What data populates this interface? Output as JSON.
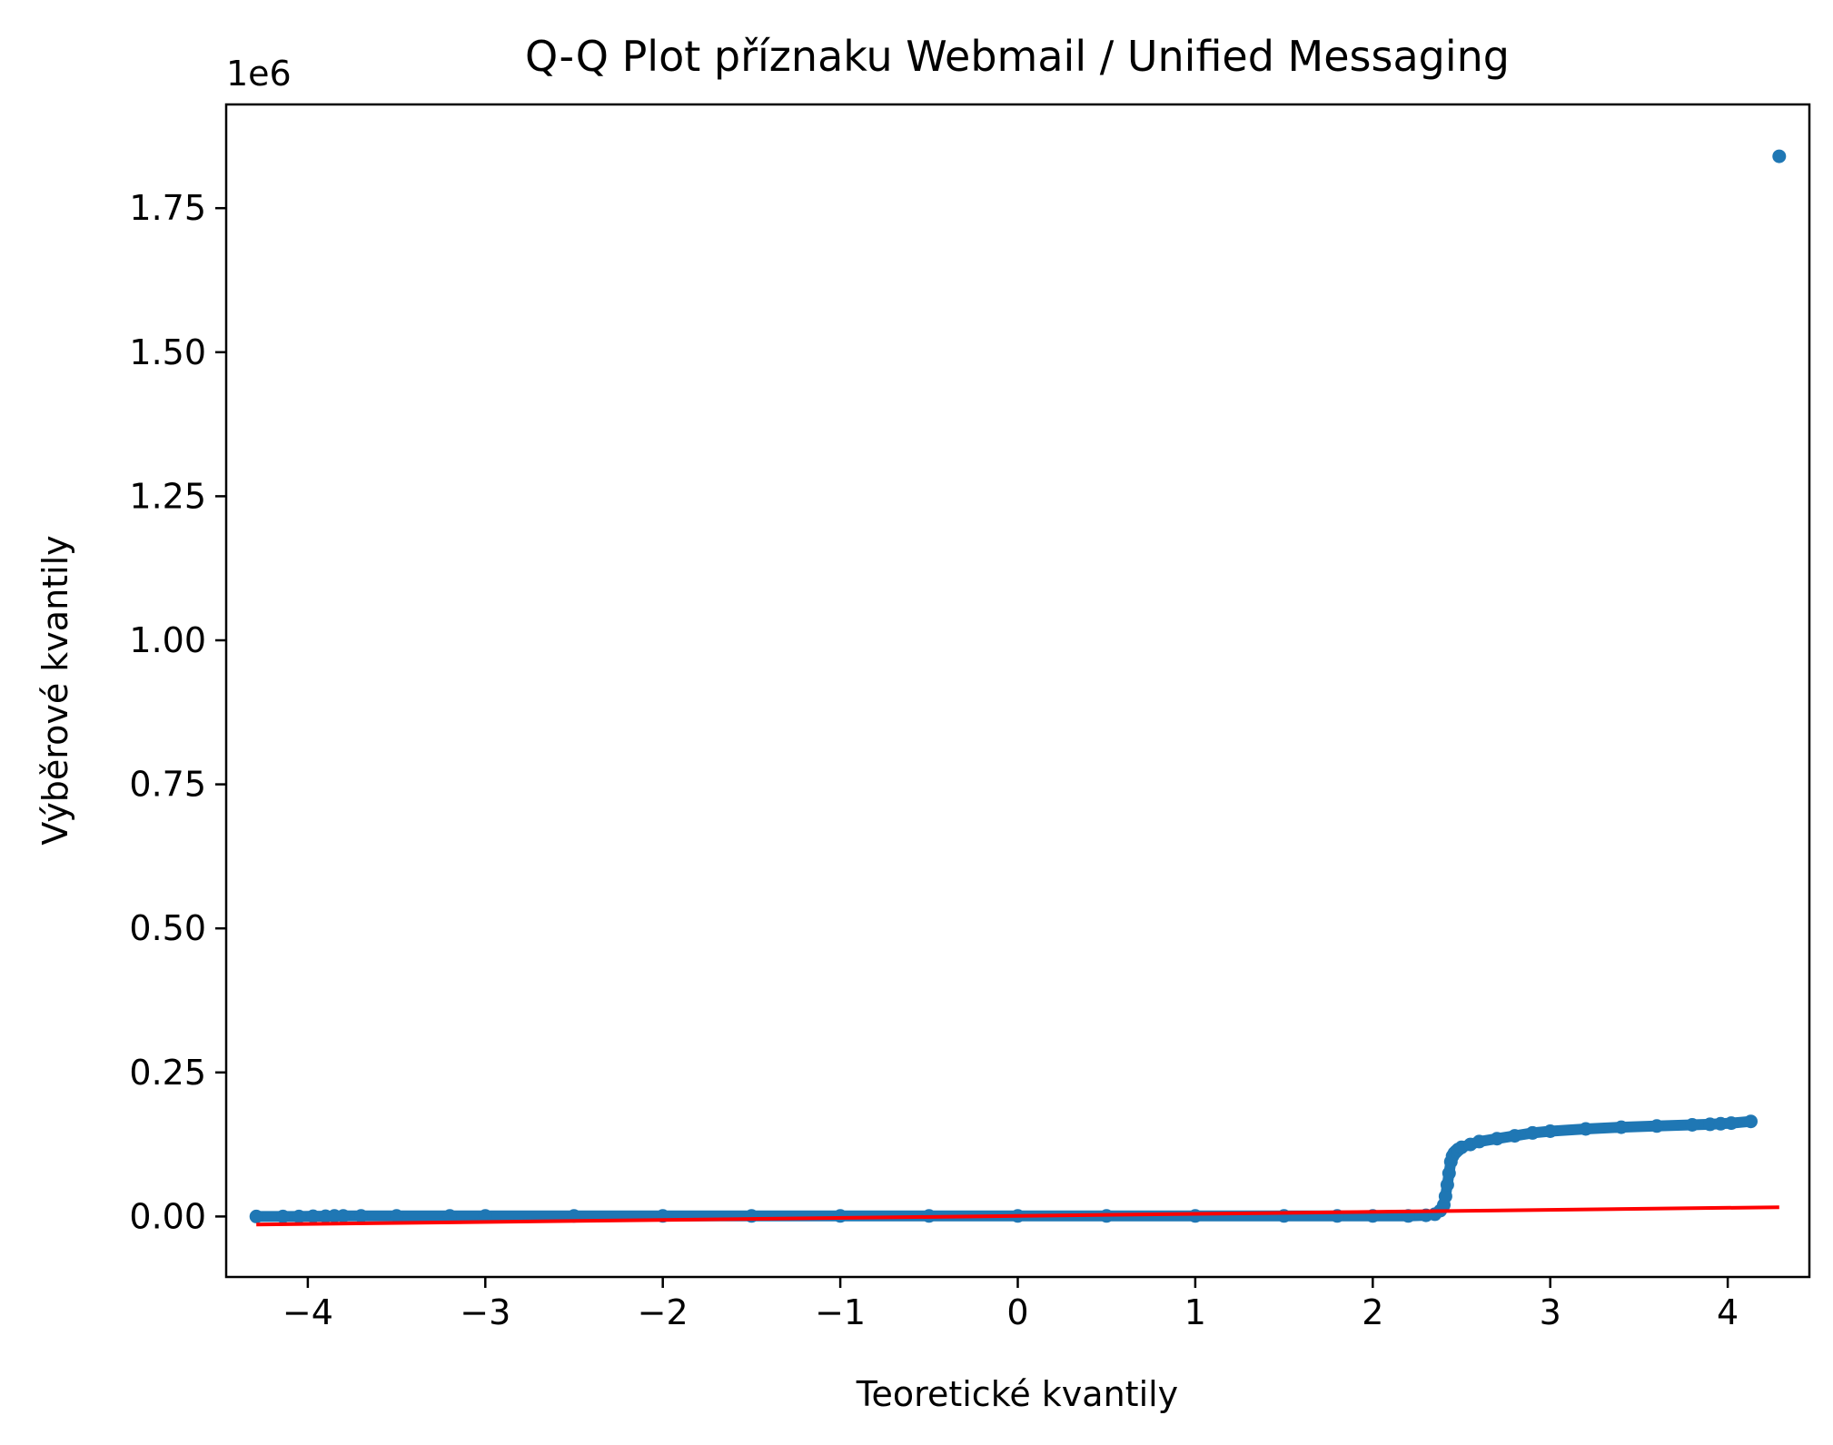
{
  "chart_data": {
    "type": "scatter",
    "title": "Q-Q Plot příznaku Webmail / Unified Messaging",
    "xlabel": "Teoretické kvantily",
    "ylabel": "Výběrové kvantily",
    "y_scale_label": "1e6",
    "xlim": [
      -4.46,
      4.46
    ],
    "ylim": [
      -0.105,
      1.93
    ],
    "x_ticks": [
      -4,
      -3,
      -2,
      -1,
      0,
      1,
      2,
      3,
      4
    ],
    "x_tick_labels": [
      "−4",
      "−3",
      "−2",
      "−1",
      "0",
      "1",
      "2",
      "3",
      "4"
    ],
    "y_ticks": [
      0.0,
      0.25,
      0.5,
      0.75,
      1.0,
      1.25,
      1.5,
      1.75
    ],
    "y_tick_labels": [
      "0.00",
      "0.25",
      "0.50",
      "0.75",
      "1.00",
      "1.25",
      "1.50",
      "1.75"
    ],
    "grid": false,
    "colors": {
      "points": "#1f77b4",
      "fit_line": "#ff0000"
    },
    "series": [
      {
        "kind": "points",
        "x": [
          -4.29,
          -4.14,
          -4.05,
          -3.97,
          -3.9,
          -3.85,
          -3.8,
          -3.7,
          -3.5,
          -3.2,
          -3.0,
          -2.5,
          -2.0,
          -1.5,
          -1.0,
          -0.5,
          0.0,
          0.5,
          1.0,
          1.5,
          1.8,
          2.0,
          2.2,
          2.3,
          2.35,
          2.38,
          2.4,
          2.41,
          2.42,
          2.43,
          2.44,
          2.45,
          2.46,
          2.47,
          2.48,
          2.5,
          2.55,
          2.6,
          2.7,
          2.8,
          2.9,
          3.0,
          3.2,
          3.4,
          3.6,
          3.8,
          3.9,
          3.96,
          4.02,
          4.13,
          4.29
        ],
        "y": [
          0.0,
          0.0,
          0.0,
          0.0005,
          0.0005,
          0.001,
          0.001,
          0.001,
          0.001,
          0.001,
          0.001,
          0.001,
          0.001,
          0.001,
          0.001,
          0.001,
          0.001,
          0.001,
          0.001,
          0.001,
          0.001,
          0.001,
          0.001,
          0.002,
          0.004,
          0.01,
          0.02,
          0.035,
          0.055,
          0.075,
          0.095,
          0.105,
          0.11,
          0.113,
          0.116,
          0.12,
          0.125,
          0.13,
          0.135,
          0.14,
          0.145,
          0.148,
          0.152,
          0.155,
          0.157,
          0.159,
          0.16,
          0.161,
          0.162,
          0.165,
          1.84
        ]
      },
      {
        "kind": "line",
        "x": [
          -4.29,
          4.29
        ],
        "y": [
          -0.014,
          0.016
        ]
      }
    ]
  }
}
